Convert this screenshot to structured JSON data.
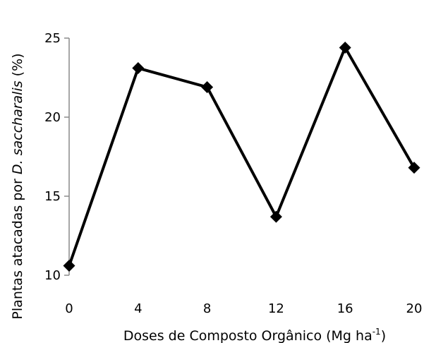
{
  "chart_data": {
    "type": "line",
    "title": "",
    "xlabel": {
      "main": "Doses de Composto Orgânico (Mg ha",
      "sup": "-1",
      "end": ")"
    },
    "ylabel": {
      "prefix": "Plantas atacadas por ",
      "italic": "D. saccharalis",
      "suffix": " (%)"
    },
    "x_ticks": [
      "0",
      "4",
      "8",
      "12",
      "16",
      "20"
    ],
    "y_ticks": [
      "10",
      "15",
      "20",
      "25"
    ],
    "xlim": [
      0,
      20
    ],
    "ylim": [
      10,
      25
    ],
    "grid": false,
    "series": [
      {
        "x": [
          0,
          4,
          8,
          12,
          16,
          20
        ],
        "y": [
          10.6,
          23.1,
          21.9,
          13.7,
          24.4,
          16.8
        ],
        "marker": "diamond",
        "color": "#000000"
      }
    ]
  }
}
